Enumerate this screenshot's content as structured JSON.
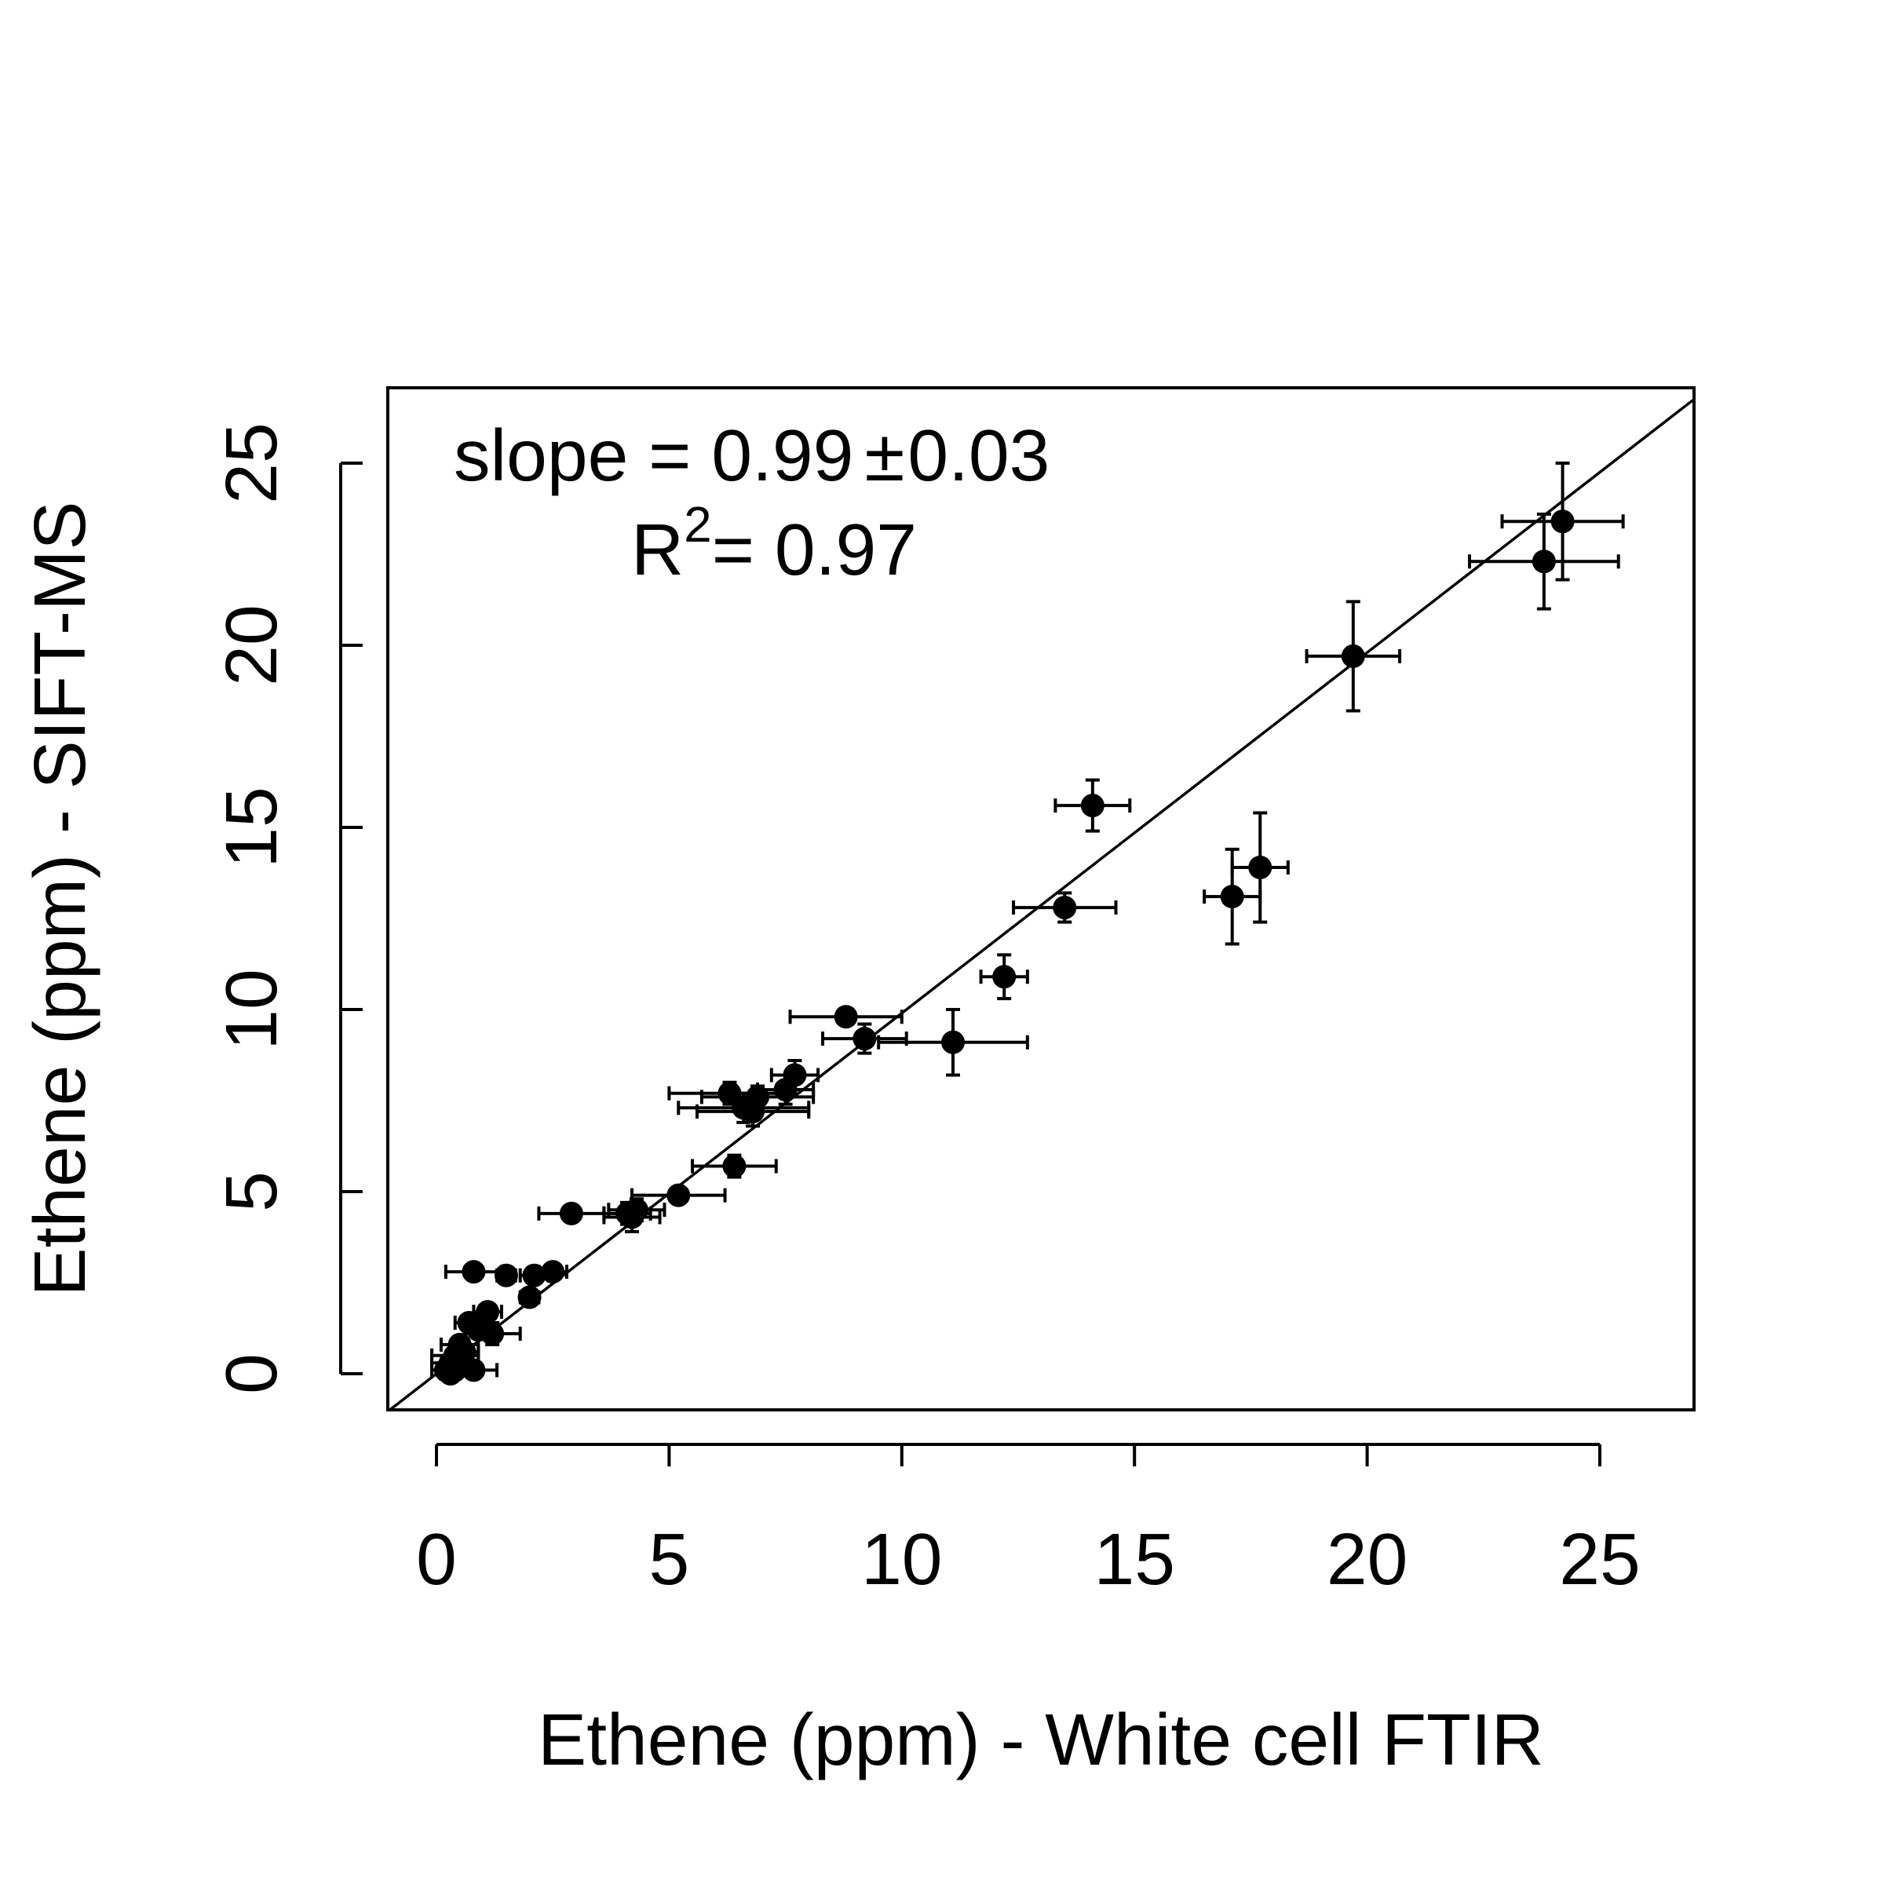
{
  "chart_data": {
    "type": "scatter",
    "xlabel": "Ethene (ppm) - White cell FTIR",
    "ylabel": "Ethene (ppm) - SIFT-MS",
    "xlim": [
      -1,
      27
    ],
    "ylim": [
      -1,
      27
    ],
    "xticks": [
      0,
      5,
      10,
      15,
      20,
      25
    ],
    "yticks": [
      0,
      5,
      10,
      15,
      20,
      25
    ],
    "xtick_labels": [
      "0",
      "5",
      "10",
      "15",
      "20",
      "25"
    ],
    "ytick_labels": [
      "0",
      "5",
      "10",
      "15",
      "20",
      "25"
    ],
    "annotations": {
      "slope_prefix": "slope = 0.99",
      "slope_pm": "±",
      "slope_err": "0.03",
      "r2_R": "R",
      "r2_exp": "2",
      "r2_value": "= 0.97"
    },
    "fit_line": {
      "slope": 0.99,
      "intercept": 0.0
    },
    "grid": false,
    "series": [
      {
        "points": [
          {
            "x": 24.2,
            "y": 23.4,
            "xerr": 1.3,
            "yerr": 1.6
          },
          {
            "x": 23.8,
            "y": 22.3,
            "xerr": 1.6,
            "yerr": 1.3
          },
          {
            "x": 19.7,
            "y": 19.7,
            "xerr": 1.0,
            "yerr": 1.5
          },
          {
            "x": 14.1,
            "y": 15.6,
            "xerr": 0.8,
            "yerr": 0.7
          },
          {
            "x": 13.5,
            "y": 12.8,
            "xerr": 1.1,
            "yerr": 0.4
          },
          {
            "x": 17.1,
            "y": 13.1,
            "xerr": 0.6,
            "yerr": 1.3
          },
          {
            "x": 17.7,
            "y": 13.9,
            "xerr": 0.6,
            "yerr": 1.5
          },
          {
            "x": 12.2,
            "y": 10.9,
            "xerr": 0.5,
            "yerr": 0.6
          },
          {
            "x": 11.1,
            "y": 9.1,
            "xerr": 1.6,
            "yerr": 0.9
          },
          {
            "x": 9.2,
            "y": 9.2,
            "xerr": 0.9,
            "yerr": 0.4
          },
          {
            "x": 8.8,
            "y": 9.8,
            "xerr": 1.2,
            "yerr": 0.2
          },
          {
            "x": 7.7,
            "y": 8.2,
            "xerr": 0.5,
            "yerr": 0.4
          },
          {
            "x": 7.5,
            "y": 7.8,
            "xerr": 0.6,
            "yerr": 0.4
          },
          {
            "x": 6.9,
            "y": 7.6,
            "xerr": 1.2,
            "yerr": 0.3
          },
          {
            "x": 6.3,
            "y": 7.7,
            "xerr": 1.3,
            "yerr": 0.3
          },
          {
            "x": 6.6,
            "y": 7.3,
            "xerr": 1.4,
            "yerr": 0.4
          },
          {
            "x": 6.8,
            "y": 7.2,
            "xerr": 1.2,
            "yerr": 0.4
          },
          {
            "x": 6.4,
            "y": 5.7,
            "xerr": 0.9,
            "yerr": 0.3
          },
          {
            "x": 5.2,
            "y": 4.9,
            "xerr": 1.0,
            "yerr": 0.2
          },
          {
            "x": 4.3,
            "y": 4.5,
            "xerr": 0.6,
            "yerr": 0.3
          },
          {
            "x": 4.2,
            "y": 4.3,
            "xerr": 0.6,
            "yerr": 0.4
          },
          {
            "x": 4.1,
            "y": 4.4,
            "xerr": 0.5,
            "yerr": 0.3
          },
          {
            "x": 2.9,
            "y": 4.4,
            "xerr": 0.7,
            "yerr": 0.2
          },
          {
            "x": 2.5,
            "y": 2.8,
            "xerr": 0.3,
            "yerr": 0.1
          },
          {
            "x": 2.1,
            "y": 2.7,
            "xerr": 0.3,
            "yerr": 0.2
          },
          {
            "x": 1.5,
            "y": 2.7,
            "xerr": 0.2,
            "yerr": 0.1
          },
          {
            "x": 2.0,
            "y": 2.1,
            "xerr": 0.2,
            "yerr": 0.2
          },
          {
            "x": 0.8,
            "y": 2.8,
            "xerr": 0.6,
            "yerr": 0.1
          },
          {
            "x": 1.1,
            "y": 1.7,
            "xerr": 0.3,
            "yerr": 0.2
          },
          {
            "x": 1.2,
            "y": 1.1,
            "xerr": 0.6,
            "yerr": 0.3
          },
          {
            "x": 0.7,
            "y": 1.4,
            "xerr": 0.3,
            "yerr": 0.2
          },
          {
            "x": 0.9,
            "y": 1.2,
            "xerr": 0.3,
            "yerr": 0.2
          },
          {
            "x": 0.5,
            "y": 0.8,
            "xerr": 0.4,
            "yerr": 0.2
          },
          {
            "x": 0.6,
            "y": 0.6,
            "xerr": 0.3,
            "yerr": 0.2
          },
          {
            "x": 0.4,
            "y": 0.5,
            "xerr": 0.5,
            "yerr": 0.2
          },
          {
            "x": 0.3,
            "y": 0.3,
            "xerr": 0.4,
            "yerr": 0.2
          },
          {
            "x": 0.2,
            "y": 0.1,
            "xerr": 0.3,
            "yerr": 0.1
          },
          {
            "x": 0.4,
            "y": 0.1,
            "xerr": 0.3,
            "yerr": 0.1
          },
          {
            "x": 0.8,
            "y": 0.1,
            "xerr": 0.5,
            "yerr": 0.1
          },
          {
            "x": 0.3,
            "y": 0.0,
            "xerr": 0.2,
            "yerr": 0.1
          }
        ]
      }
    ]
  }
}
